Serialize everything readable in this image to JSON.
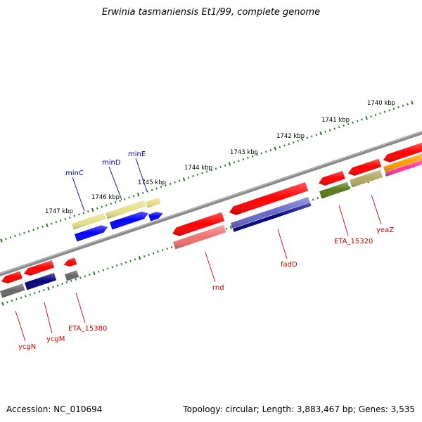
{
  "title": "Erwinia tasmaniensis Et1/99, complete genome",
  "accession_text": "Accession: NC_010694",
  "summary_text": "Topology: circular; Length: 3,883,467 bp; Genes: 3,535",
  "colors": {
    "backbone": "#808080",
    "tick": "#1f7a1f",
    "label_upper": "#0000aa",
    "label_lower": "#cc0000",
    "red": "#ff0000",
    "blue": "#0000ff",
    "khaki": "#e6e08a",
    "navy": "#00007a",
    "grey": "#666666",
    "salmon": "#f07070",
    "periwinkle": "#6666cc",
    "olive": "#5a7a1a",
    "tan": "#b0aa60",
    "orange": "#ff9900",
    "magenta": "#ff3399"
  },
  "scale_labels": [
    {
      "id": "1740",
      "text": "1740 kbp"
    },
    {
      "id": "1741",
      "text": "1741 kbp"
    },
    {
      "id": "1742",
      "text": "1742 kbp"
    },
    {
      "id": "1743",
      "text": "1743 kbp"
    },
    {
      "id": "1744",
      "text": "1744 kbp"
    },
    {
      "id": "1745",
      "text": "1745 kbp"
    },
    {
      "id": "1746",
      "text": "1746 kbp"
    },
    {
      "id": "1747",
      "text": "1747 kbp"
    }
  ],
  "gene_labels_upper": [
    {
      "id": "minC",
      "text": "minC"
    },
    {
      "id": "minD",
      "text": "minD"
    },
    {
      "id": "minE",
      "text": "minE"
    }
  ],
  "gene_labels_lower": [
    {
      "id": "ycgN",
      "text": "ycgN"
    },
    {
      "id": "ycgM",
      "text": "ycgM"
    },
    {
      "id": "ETA_15380",
      "text": "ETA_15380"
    },
    {
      "id": "rnd",
      "text": "rnd"
    },
    {
      "id": "fadD",
      "text": "fadD"
    },
    {
      "id": "ETA_15320",
      "text": "ETA_15320"
    },
    {
      "id": "yeaZ",
      "text": "yeaZ"
    }
  ]
}
